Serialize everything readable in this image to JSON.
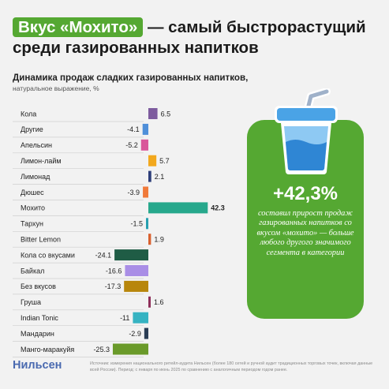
{
  "header": {
    "title_pill": "Вкус «Мохито»",
    "title_rest": " — самый быстрорастущий",
    "title_line2": "среди газированных напитков"
  },
  "chart_data": {
    "type": "bar",
    "orientation": "horizontal",
    "title": "Динамика продаж сладких газированных напитков,",
    "subtitle": "натуральное выражение, %",
    "categories": [
      "Кола",
      "Другие",
      "Апельсин",
      "Лимон-лайм",
      "Лимонад",
      "Дюшес",
      "Мохито",
      "Тархун",
      "Bitter Lemon",
      "Кола со вкусами",
      "Байкал",
      "Без вкусов",
      "Груша",
      "Indian Tonic",
      "Мандарин",
      "Манго-маракуйя"
    ],
    "values": [
      6.5,
      -4.1,
      -5.2,
      5.7,
      2.1,
      -3.9,
      42.3,
      -1.5,
      1.9,
      -24.1,
      -16.6,
      -17.3,
      1.6,
      -11,
      -2.9,
      -25.3
    ],
    "value_labels": [
      "6.5",
      "-4.1",
      "-5.2",
      "5.7",
      "2.1",
      "-3.9",
      "42.3",
      "-1.5",
      "1.9",
      "-24.1",
      "-16.6",
      "-17.3",
      "1.6",
      "-11",
      "-2.9",
      "-25.3"
    ],
    "colors": [
      "#7d5b9e",
      "#4f8fd9",
      "#d9579a",
      "#f2a81d",
      "#2e3f7a",
      "#f07a3a",
      "#27a88c",
      "#27a0b0",
      "#d9602f",
      "#1f5c45",
      "#a98ee6",
      "#b8860b",
      "#8f2f5a",
      "#36b3c2",
      "#2a3d55",
      "#6a9a2a"
    ],
    "xlabel": "",
    "ylabel": "",
    "grid": false,
    "legend": "none"
  },
  "callout": {
    "value": "+42,3%",
    "text": "составил прирост продаж газированных напитков со вкусом «мохито» — больше любого другого значимого сегмента в категории",
    "icon": "drink-cup-icon",
    "bg_color": "#55a832"
  },
  "footer": {
    "logo": "Нильсен",
    "source": "Источник: измерения национального ритейл-аудита Нильсен (более 180 сетей и ручной аудит традиционных торговых точек, включая данные всей России). Период: с января по июнь 2025 по сравнению с аналогичным периодом годом ранее."
  }
}
